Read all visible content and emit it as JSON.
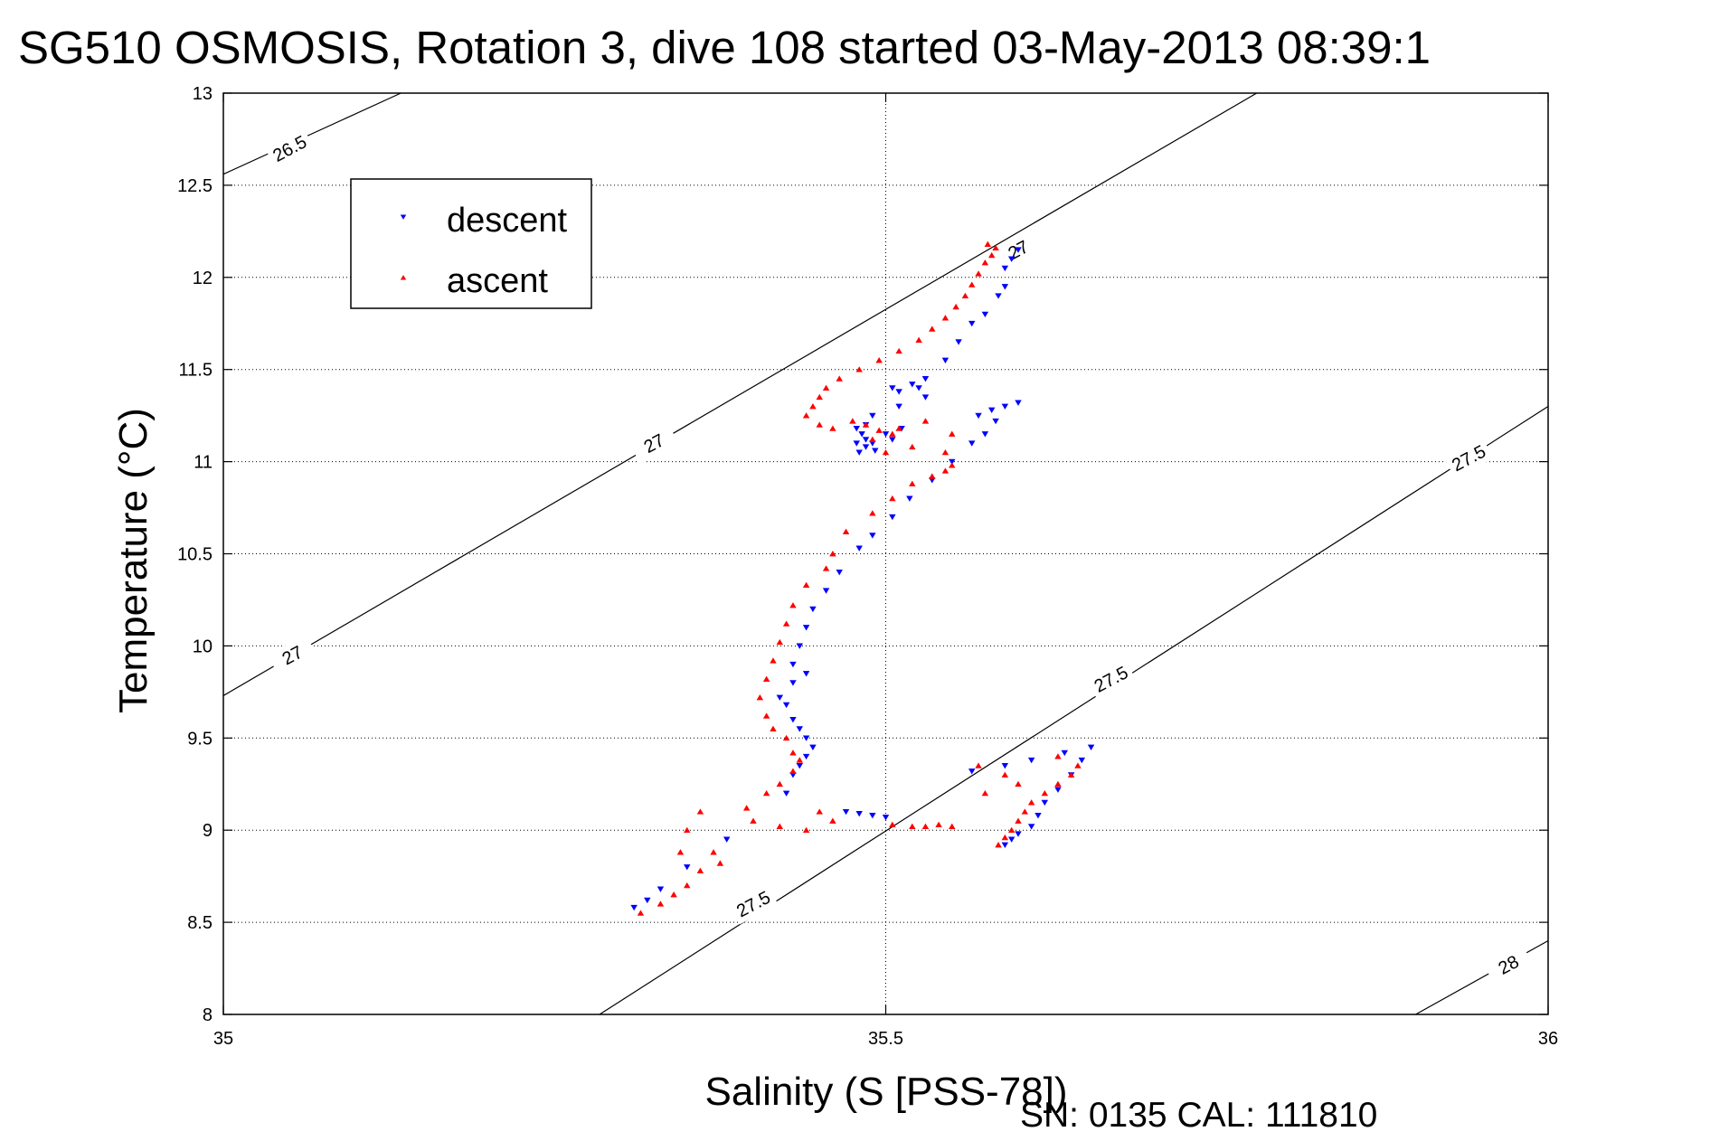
{
  "chart_data": {
    "type": "scatter",
    "title": "SG510 OSMOSIS, Rotation 3, dive 108 started 03-May-2013 08:39:1",
    "xlabel": "Salinity (S [PSS-78])",
    "ylabel": "Temperature (°C)",
    "xlim": [
      35,
      36
    ],
    "ylim": [
      8,
      13
    ],
    "xticks": [
      "35",
      "35.5",
      "36"
    ],
    "yticks": [
      "8",
      "8.5",
      "9",
      "9.5",
      "10",
      "10.5",
      "11",
      "11.5",
      "12",
      "12.5",
      "13"
    ],
    "grid": true,
    "legend_position": "top-left",
    "footnote": "SN: 0135  CAL: 111810",
    "density_contours": [
      {
        "label": "26.5",
        "points": [
          [
            35.0,
            12.56
          ],
          [
            35.134,
            13.0
          ]
        ]
      },
      {
        "label": "27",
        "points": [
          [
            35.0,
            9.73
          ],
          [
            35.78,
            13.0
          ]
        ]
      },
      {
        "label": "27.5",
        "points": [
          [
            35.284,
            8.0
          ],
          [
            36.0,
            11.3
          ]
        ]
      },
      {
        "label": "28",
        "points": [
          [
            35.9,
            8.0
          ],
          [
            36.0,
            8.4
          ]
        ]
      }
    ],
    "contour_labels": [
      {
        "text": "26.5",
        "x": 35.05,
        "y": 12.7
      },
      {
        "text": "27",
        "x": 35.6,
        "y": 12.15
      },
      {
        "text": "27",
        "x": 35.325,
        "y": 11.1
      },
      {
        "text": "27",
        "x": 35.052,
        "y": 9.95
      },
      {
        "text": "27.5",
        "x": 35.94,
        "y": 11.02
      },
      {
        "text": "27.5",
        "x": 35.67,
        "y": 9.82
      },
      {
        "text": "27.5",
        "x": 35.4,
        "y": 8.6
      },
      {
        "text": "28",
        "x": 35.97,
        "y": 8.27
      }
    ],
    "series": [
      {
        "name": "descent",
        "color": "#0000ff",
        "marker": "triangle-down",
        "points": [
          [
            35.59,
            12.05
          ],
          [
            35.595,
            12.1
          ],
          [
            35.6,
            12.15
          ],
          [
            35.59,
            11.95
          ],
          [
            35.585,
            11.9
          ],
          [
            35.575,
            11.8
          ],
          [
            35.565,
            11.75
          ],
          [
            35.555,
            11.65
          ],
          [
            35.545,
            11.55
          ],
          [
            35.53,
            11.45
          ],
          [
            35.52,
            11.42
          ],
          [
            35.505,
            11.4
          ],
          [
            35.51,
            11.38
          ],
          [
            35.525,
            11.4
          ],
          [
            35.53,
            11.35
          ],
          [
            35.51,
            11.3
          ],
          [
            35.49,
            11.25
          ],
          [
            35.485,
            11.2
          ],
          [
            35.478,
            11.18
          ],
          [
            35.482,
            11.15
          ],
          [
            35.485,
            11.12
          ],
          [
            35.478,
            11.1
          ],
          [
            35.49,
            11.1
          ],
          [
            35.485,
            11.08
          ],
          [
            35.492,
            11.06
          ],
          [
            35.48,
            11.05
          ],
          [
            35.5,
            11.15
          ],
          [
            35.505,
            11.12
          ],
          [
            35.512,
            11.18
          ],
          [
            35.57,
            11.25
          ],
          [
            35.58,
            11.28
          ],
          [
            35.59,
            11.3
          ],
          [
            35.6,
            11.32
          ],
          [
            35.583,
            11.22
          ],
          [
            35.575,
            11.15
          ],
          [
            35.565,
            11.1
          ],
          [
            35.55,
            11.0
          ],
          [
            35.535,
            10.9
          ],
          [
            35.518,
            10.8
          ],
          [
            35.505,
            10.7
          ],
          [
            35.49,
            10.6
          ],
          [
            35.48,
            10.53
          ],
          [
            35.465,
            10.4
          ],
          [
            35.455,
            10.3
          ],
          [
            35.445,
            10.2
          ],
          [
            35.44,
            10.1
          ],
          [
            35.435,
            10.0
          ],
          [
            35.43,
            9.9
          ],
          [
            35.44,
            9.85
          ],
          [
            35.43,
            9.8
          ],
          [
            35.42,
            9.72
          ],
          [
            35.425,
            9.68
          ],
          [
            35.43,
            9.6
          ],
          [
            35.435,
            9.55
          ],
          [
            35.44,
            9.5
          ],
          [
            35.445,
            9.45
          ],
          [
            35.44,
            9.4
          ],
          [
            35.435,
            9.35
          ],
          [
            35.43,
            9.3
          ],
          [
            35.425,
            9.2
          ],
          [
            35.47,
            9.1
          ],
          [
            35.48,
            9.09
          ],
          [
            35.49,
            9.08
          ],
          [
            35.5,
            9.07
          ],
          [
            35.59,
            8.92
          ],
          [
            35.595,
            8.95
          ],
          [
            35.6,
            8.98
          ],
          [
            35.61,
            9.02
          ],
          [
            35.615,
            9.08
          ],
          [
            35.62,
            9.15
          ],
          [
            35.63,
            9.22
          ],
          [
            35.64,
            9.3
          ],
          [
            35.648,
            9.38
          ],
          [
            35.655,
            9.45
          ],
          [
            35.635,
            9.42
          ],
          [
            35.61,
            9.38
          ],
          [
            35.59,
            9.35
          ],
          [
            35.565,
            9.32
          ],
          [
            35.35,
            8.8
          ],
          [
            35.33,
            8.68
          ],
          [
            35.32,
            8.62
          ],
          [
            35.31,
            8.58
          ],
          [
            35.38,
            8.95
          ]
        ]
      },
      {
        "name": "ascent",
        "color": "#ff0000",
        "marker": "triangle-up",
        "points": [
          [
            35.577,
            12.18
          ],
          [
            35.583,
            12.16
          ],
          [
            35.58,
            12.12
          ],
          [
            35.575,
            12.08
          ],
          [
            35.57,
            12.02
          ],
          [
            35.565,
            11.96
          ],
          [
            35.56,
            11.9
          ],
          [
            35.553,
            11.84
          ],
          [
            35.545,
            11.78
          ],
          [
            35.535,
            11.72
          ],
          [
            35.525,
            11.66
          ],
          [
            35.51,
            11.6
          ],
          [
            35.495,
            11.55
          ],
          [
            35.48,
            11.5
          ],
          [
            35.465,
            11.45
          ],
          [
            35.455,
            11.4
          ],
          [
            35.45,
            11.35
          ],
          [
            35.445,
            11.3
          ],
          [
            35.44,
            11.25
          ],
          [
            35.45,
            11.2
          ],
          [
            35.46,
            11.18
          ],
          [
            35.475,
            11.22
          ],
          [
            35.485,
            11.2
          ],
          [
            35.495,
            11.17
          ],
          [
            35.51,
            11.18
          ],
          [
            35.505,
            11.15
          ],
          [
            35.49,
            11.12
          ],
          [
            35.5,
            11.05
          ],
          [
            35.52,
            11.08
          ],
          [
            35.53,
            11.22
          ],
          [
            35.55,
            11.15
          ],
          [
            35.545,
            11.05
          ],
          [
            35.55,
            10.98
          ],
          [
            35.545,
            10.95
          ],
          [
            35.535,
            10.92
          ],
          [
            35.52,
            10.88
          ],
          [
            35.505,
            10.8
          ],
          [
            35.49,
            10.72
          ],
          [
            35.47,
            10.62
          ],
          [
            35.46,
            10.5
          ],
          [
            35.455,
            10.42
          ],
          [
            35.44,
            10.33
          ],
          [
            35.43,
            10.22
          ],
          [
            35.425,
            10.12
          ],
          [
            35.42,
            10.02
          ],
          [
            35.415,
            9.92
          ],
          [
            35.41,
            9.82
          ],
          [
            35.405,
            9.72
          ],
          [
            35.41,
            9.62
          ],
          [
            35.415,
            9.55
          ],
          [
            35.425,
            9.5
          ],
          [
            35.43,
            9.42
          ],
          [
            35.435,
            9.38
          ],
          [
            35.43,
            9.32
          ],
          [
            35.42,
            9.25
          ],
          [
            35.41,
            9.2
          ],
          [
            35.395,
            9.12
          ],
          [
            35.4,
            9.05
          ],
          [
            35.42,
            9.02
          ],
          [
            35.44,
            9.0
          ],
          [
            35.36,
            9.1
          ],
          [
            35.35,
            9.0
          ],
          [
            35.37,
            8.88
          ],
          [
            35.375,
            8.82
          ],
          [
            35.36,
            8.78
          ],
          [
            35.35,
            8.7
          ],
          [
            35.34,
            8.65
          ],
          [
            35.33,
            8.6
          ],
          [
            35.315,
            8.55
          ],
          [
            35.345,
            8.88
          ],
          [
            35.45,
            9.1
          ],
          [
            35.46,
            9.05
          ],
          [
            35.505,
            9.03
          ],
          [
            35.52,
            9.02
          ],
          [
            35.53,
            9.02
          ],
          [
            35.54,
            9.03
          ],
          [
            35.55,
            9.02
          ],
          [
            35.585,
            8.92
          ],
          [
            35.59,
            8.96
          ],
          [
            35.595,
            9.0
          ],
          [
            35.6,
            9.05
          ],
          [
            35.605,
            9.1
          ],
          [
            35.61,
            9.15
          ],
          [
            35.62,
            9.2
          ],
          [
            35.63,
            9.25
          ],
          [
            35.64,
            9.3
          ],
          [
            35.6,
            9.25
          ],
          [
            35.575,
            9.2
          ],
          [
            35.59,
            9.3
          ],
          [
            35.57,
            9.35
          ],
          [
            35.645,
            9.35
          ],
          [
            35.63,
            9.4
          ]
        ]
      }
    ]
  }
}
